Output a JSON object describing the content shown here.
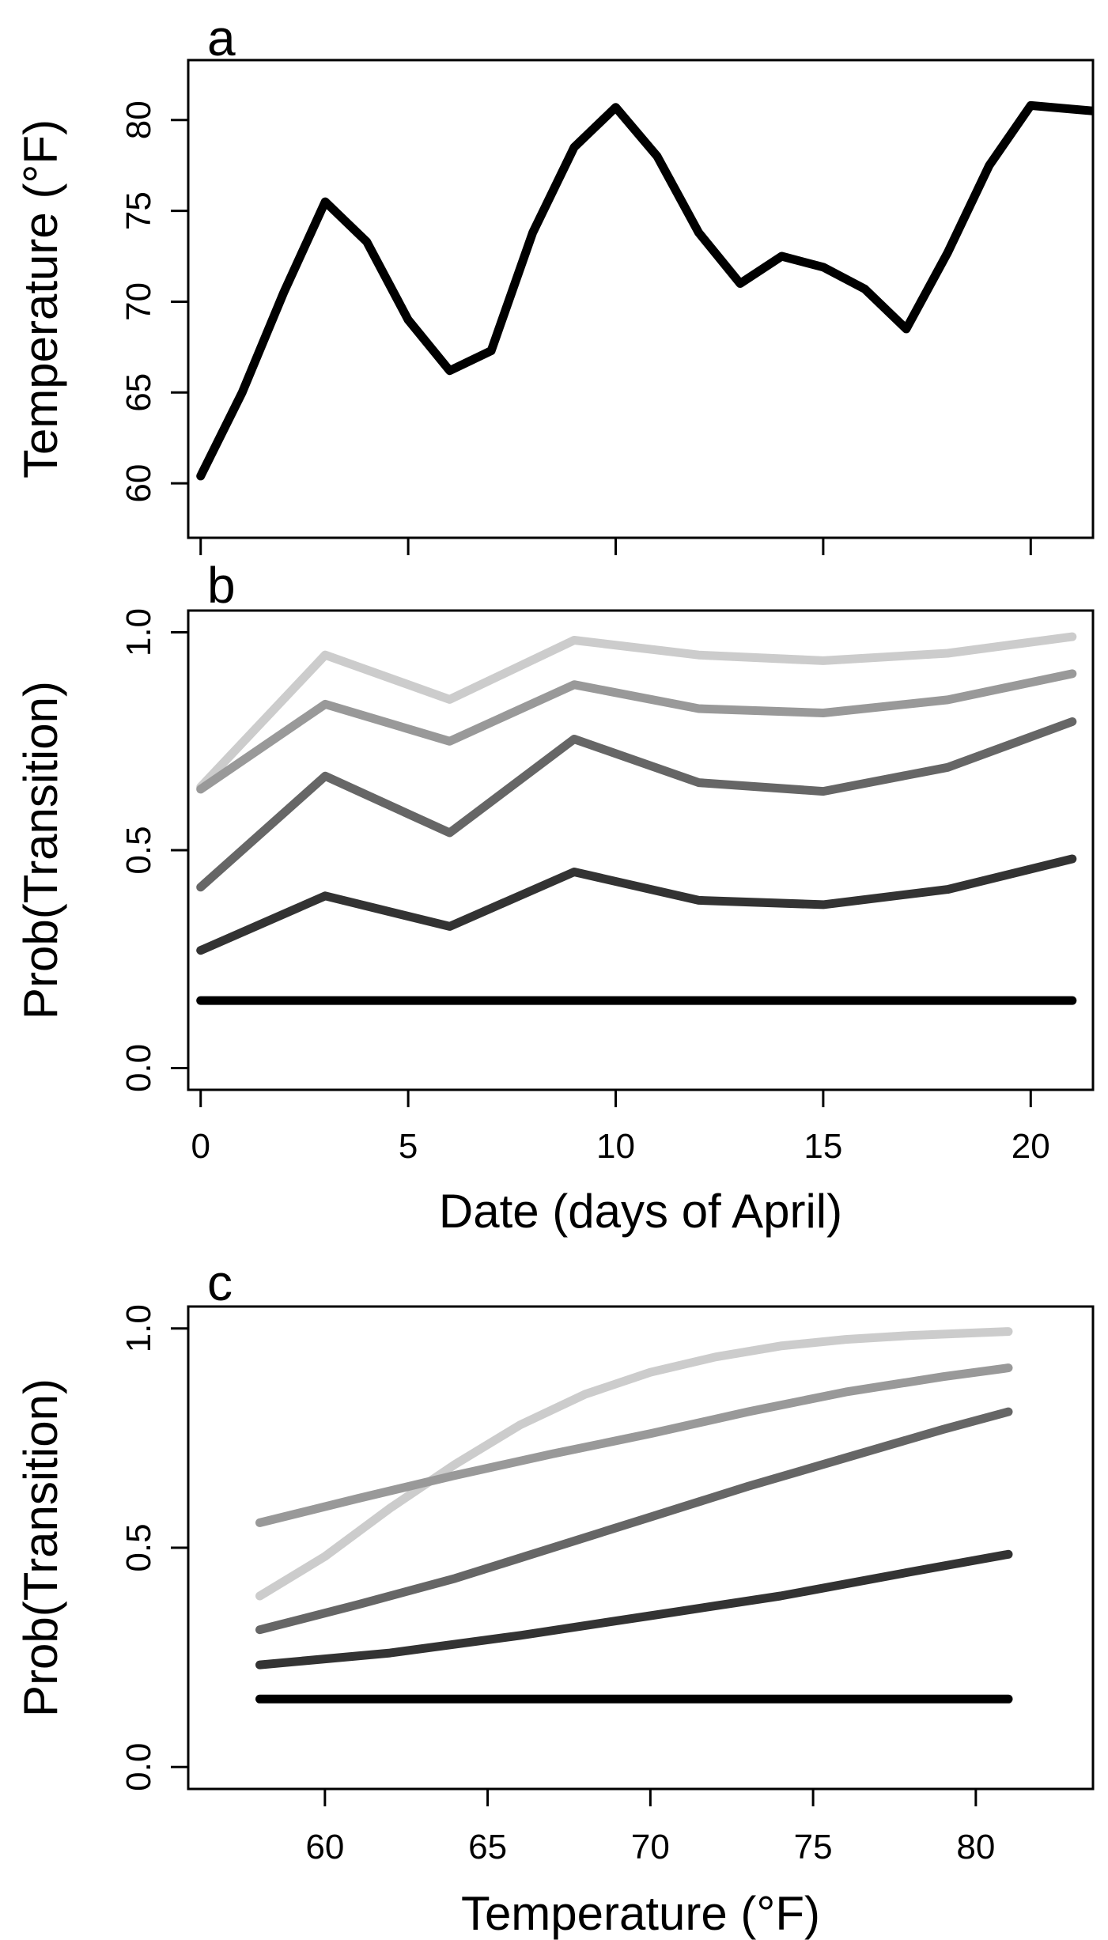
{
  "chart_data": [
    {
      "panel_label": "a",
      "type": "line",
      "xlim": [
        -0.3,
        21.5
      ],
      "ylim": [
        57,
        83.3
      ],
      "xticks": [
        0,
        5,
        10,
        15,
        20
      ],
      "xtick_labels_shown": false,
      "yticks": [
        60,
        65,
        70,
        75,
        80
      ],
      "ytick_labels": [
        "60",
        "65",
        "70",
        "75",
        "80"
      ],
      "xlabel": "",
      "ylabel": "Temperature (°F)",
      "series": [
        {
          "name": "temperature",
          "color": "#000000",
          "x": [
            0,
            1,
            2,
            3,
            4,
            5,
            6,
            7,
            8,
            9,
            10,
            11,
            12,
            13,
            14,
            15,
            16,
            17,
            18,
            19,
            20,
            21,
            21.5
          ],
          "y": [
            60.4,
            65,
            70.5,
            75.5,
            73.3,
            69,
            66.2,
            67.3,
            73.8,
            78.5,
            80.7,
            78,
            73.8,
            71,
            72.5,
            71.9,
            70.7,
            68.5,
            72.7,
            77.5,
            80.8,
            80.6,
            80.5
          ]
        }
      ]
    },
    {
      "panel_label": "b",
      "type": "line",
      "xlim": [
        -0.3,
        21.5
      ],
      "ylim": [
        -0.05,
        1.05
      ],
      "xticks": [
        0,
        5,
        10,
        15,
        20
      ],
      "xtick_labels": [
        "0",
        "5",
        "10",
        "15",
        "20"
      ],
      "yticks": [
        0.0,
        0.5,
        1.0
      ],
      "ytick_labels": [
        "0.0",
        "0.5",
        "1.0"
      ],
      "xlabel": "Date (days of April)",
      "ylabel": "Prob(Transition)",
      "series": [
        {
          "name": "series-1",
          "color": "#cccccc",
          "x": [
            0,
            3,
            6,
            9,
            12,
            15,
            18,
            21
          ],
          "y": [
            0.645,
            0.948,
            0.846,
            0.982,
            0.948,
            0.935,
            0.952,
            0.99
          ]
        },
        {
          "name": "series-2",
          "color": "#999999",
          "x": [
            0,
            3,
            6,
            9,
            12,
            15,
            18,
            21
          ],
          "y": [
            0.64,
            0.835,
            0.75,
            0.88,
            0.825,
            0.815,
            0.845,
            0.905
          ]
        },
        {
          "name": "series-3",
          "color": "#666666",
          "x": [
            0,
            3,
            6,
            9,
            12,
            15,
            18,
            21
          ],
          "y": [
            0.415,
            0.67,
            0.54,
            0.755,
            0.655,
            0.635,
            0.69,
            0.795
          ]
        },
        {
          "name": "series-4",
          "color": "#333333",
          "x": [
            0,
            3,
            6,
            9,
            12,
            15,
            18,
            21
          ],
          "y": [
            0.27,
            0.395,
            0.325,
            0.45,
            0.385,
            0.375,
            0.41,
            0.48
          ]
        },
        {
          "name": "series-5",
          "color": "#000000",
          "x": [
            0,
            21
          ],
          "y": [
            0.155,
            0.155
          ]
        }
      ]
    },
    {
      "panel_label": "c",
      "type": "line",
      "xlim": [
        55.8,
        83.6
      ],
      "ylim": [
        -0.05,
        1.05
      ],
      "xticks": [
        60,
        65,
        70,
        75,
        80
      ],
      "xtick_labels": [
        "60",
        "65",
        "70",
        "75",
        "80"
      ],
      "yticks": [
        0.0,
        0.5,
        1.0
      ],
      "ytick_labels": [
        "0.0",
        "0.5",
        "1.0"
      ],
      "xlabel": "Temperature (°F)",
      "ylabel": "Prob(Transition)",
      "series": [
        {
          "name": "series-1",
          "color": "#cccccc",
          "x": [
            58,
            60,
            62,
            64,
            66,
            68,
            70,
            72,
            74,
            76,
            78,
            80,
            81
          ],
          "y": [
            0.39,
            0.48,
            0.59,
            0.69,
            0.78,
            0.85,
            0.9,
            0.935,
            0.96,
            0.975,
            0.984,
            0.99,
            0.993
          ]
        },
        {
          "name": "series-2",
          "color": "#999999",
          "x": [
            58,
            61,
            64,
            67,
            70,
            73,
            76,
            79,
            81
          ],
          "y": [
            0.557,
            0.612,
            0.665,
            0.714,
            0.76,
            0.81,
            0.855,
            0.89,
            0.91
          ]
        },
        {
          "name": "series-3",
          "color": "#666666",
          "x": [
            58,
            61,
            64,
            67,
            70,
            73,
            76,
            79,
            81
          ],
          "y": [
            0.313,
            0.37,
            0.43,
            0.5,
            0.57,
            0.64,
            0.705,
            0.77,
            0.81
          ]
        },
        {
          "name": "series-4",
          "color": "#333333",
          "x": [
            58,
            62,
            66,
            70,
            74,
            78,
            81
          ],
          "y": [
            0.233,
            0.26,
            0.3,
            0.345,
            0.39,
            0.445,
            0.485
          ]
        },
        {
          "name": "series-5",
          "color": "#000000",
          "x": [
            58,
            81
          ],
          "y": [
            0.155,
            0.155
          ]
        }
      ]
    }
  ]
}
